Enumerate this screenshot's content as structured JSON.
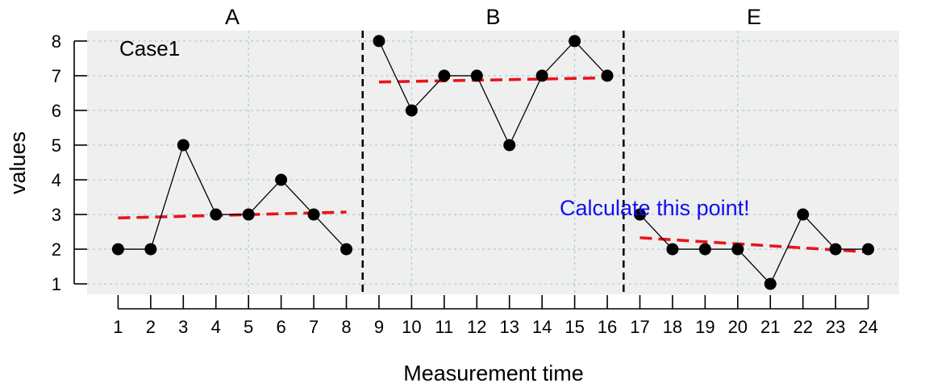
{
  "chart_data": {
    "type": "line",
    "xlabel": "Measurement time",
    "ylabel": "values",
    "case_label": "Case1",
    "annotation": "Calculate this point!",
    "xlim": [
      0.05,
      24.95
    ],
    "ylim": [
      0.7,
      8.3
    ],
    "yticks": [
      1,
      2,
      3,
      4,
      5,
      6,
      7,
      8
    ],
    "xticks": [
      1,
      2,
      3,
      4,
      5,
      6,
      7,
      8,
      9,
      10,
      11,
      12,
      13,
      14,
      15,
      16,
      17,
      18,
      19,
      20,
      21,
      22,
      23,
      24
    ],
    "grid": true,
    "phases": [
      {
        "label": "A",
        "x": [
          1,
          2,
          3,
          4,
          5,
          6,
          7,
          8
        ],
        "values": [
          2,
          2,
          5,
          3,
          3,
          4,
          3,
          2
        ],
        "trend": {
          "x": [
            1,
            8
          ],
          "y": [
            2.9,
            3.07
          ]
        }
      },
      {
        "label": "B",
        "x": [
          9,
          10,
          11,
          12,
          13,
          14,
          15,
          16
        ],
        "values": [
          8,
          6,
          7,
          7,
          5,
          7,
          8,
          7
        ],
        "trend": {
          "x": [
            9,
            16
          ],
          "y": [
            6.82,
            6.94
          ]
        }
      },
      {
        "label": "E",
        "x": [
          17,
          18,
          19,
          20,
          21,
          22,
          23,
          24
        ],
        "values": [
          3,
          2,
          2,
          2,
          1,
          3,
          2,
          2
        ],
        "trend": {
          "x": [
            17,
            24
          ],
          "y": [
            2.33,
            1.92
          ]
        }
      }
    ],
    "phase_boundaries": [
      8.5,
      16.5
    ],
    "colors": {
      "panel_bg": "#efefef",
      "grid": "#a8cfe0",
      "points": "#000000",
      "trend": "#e8141c",
      "annotation": "#1010ee",
      "boundary": "#000000"
    }
  }
}
